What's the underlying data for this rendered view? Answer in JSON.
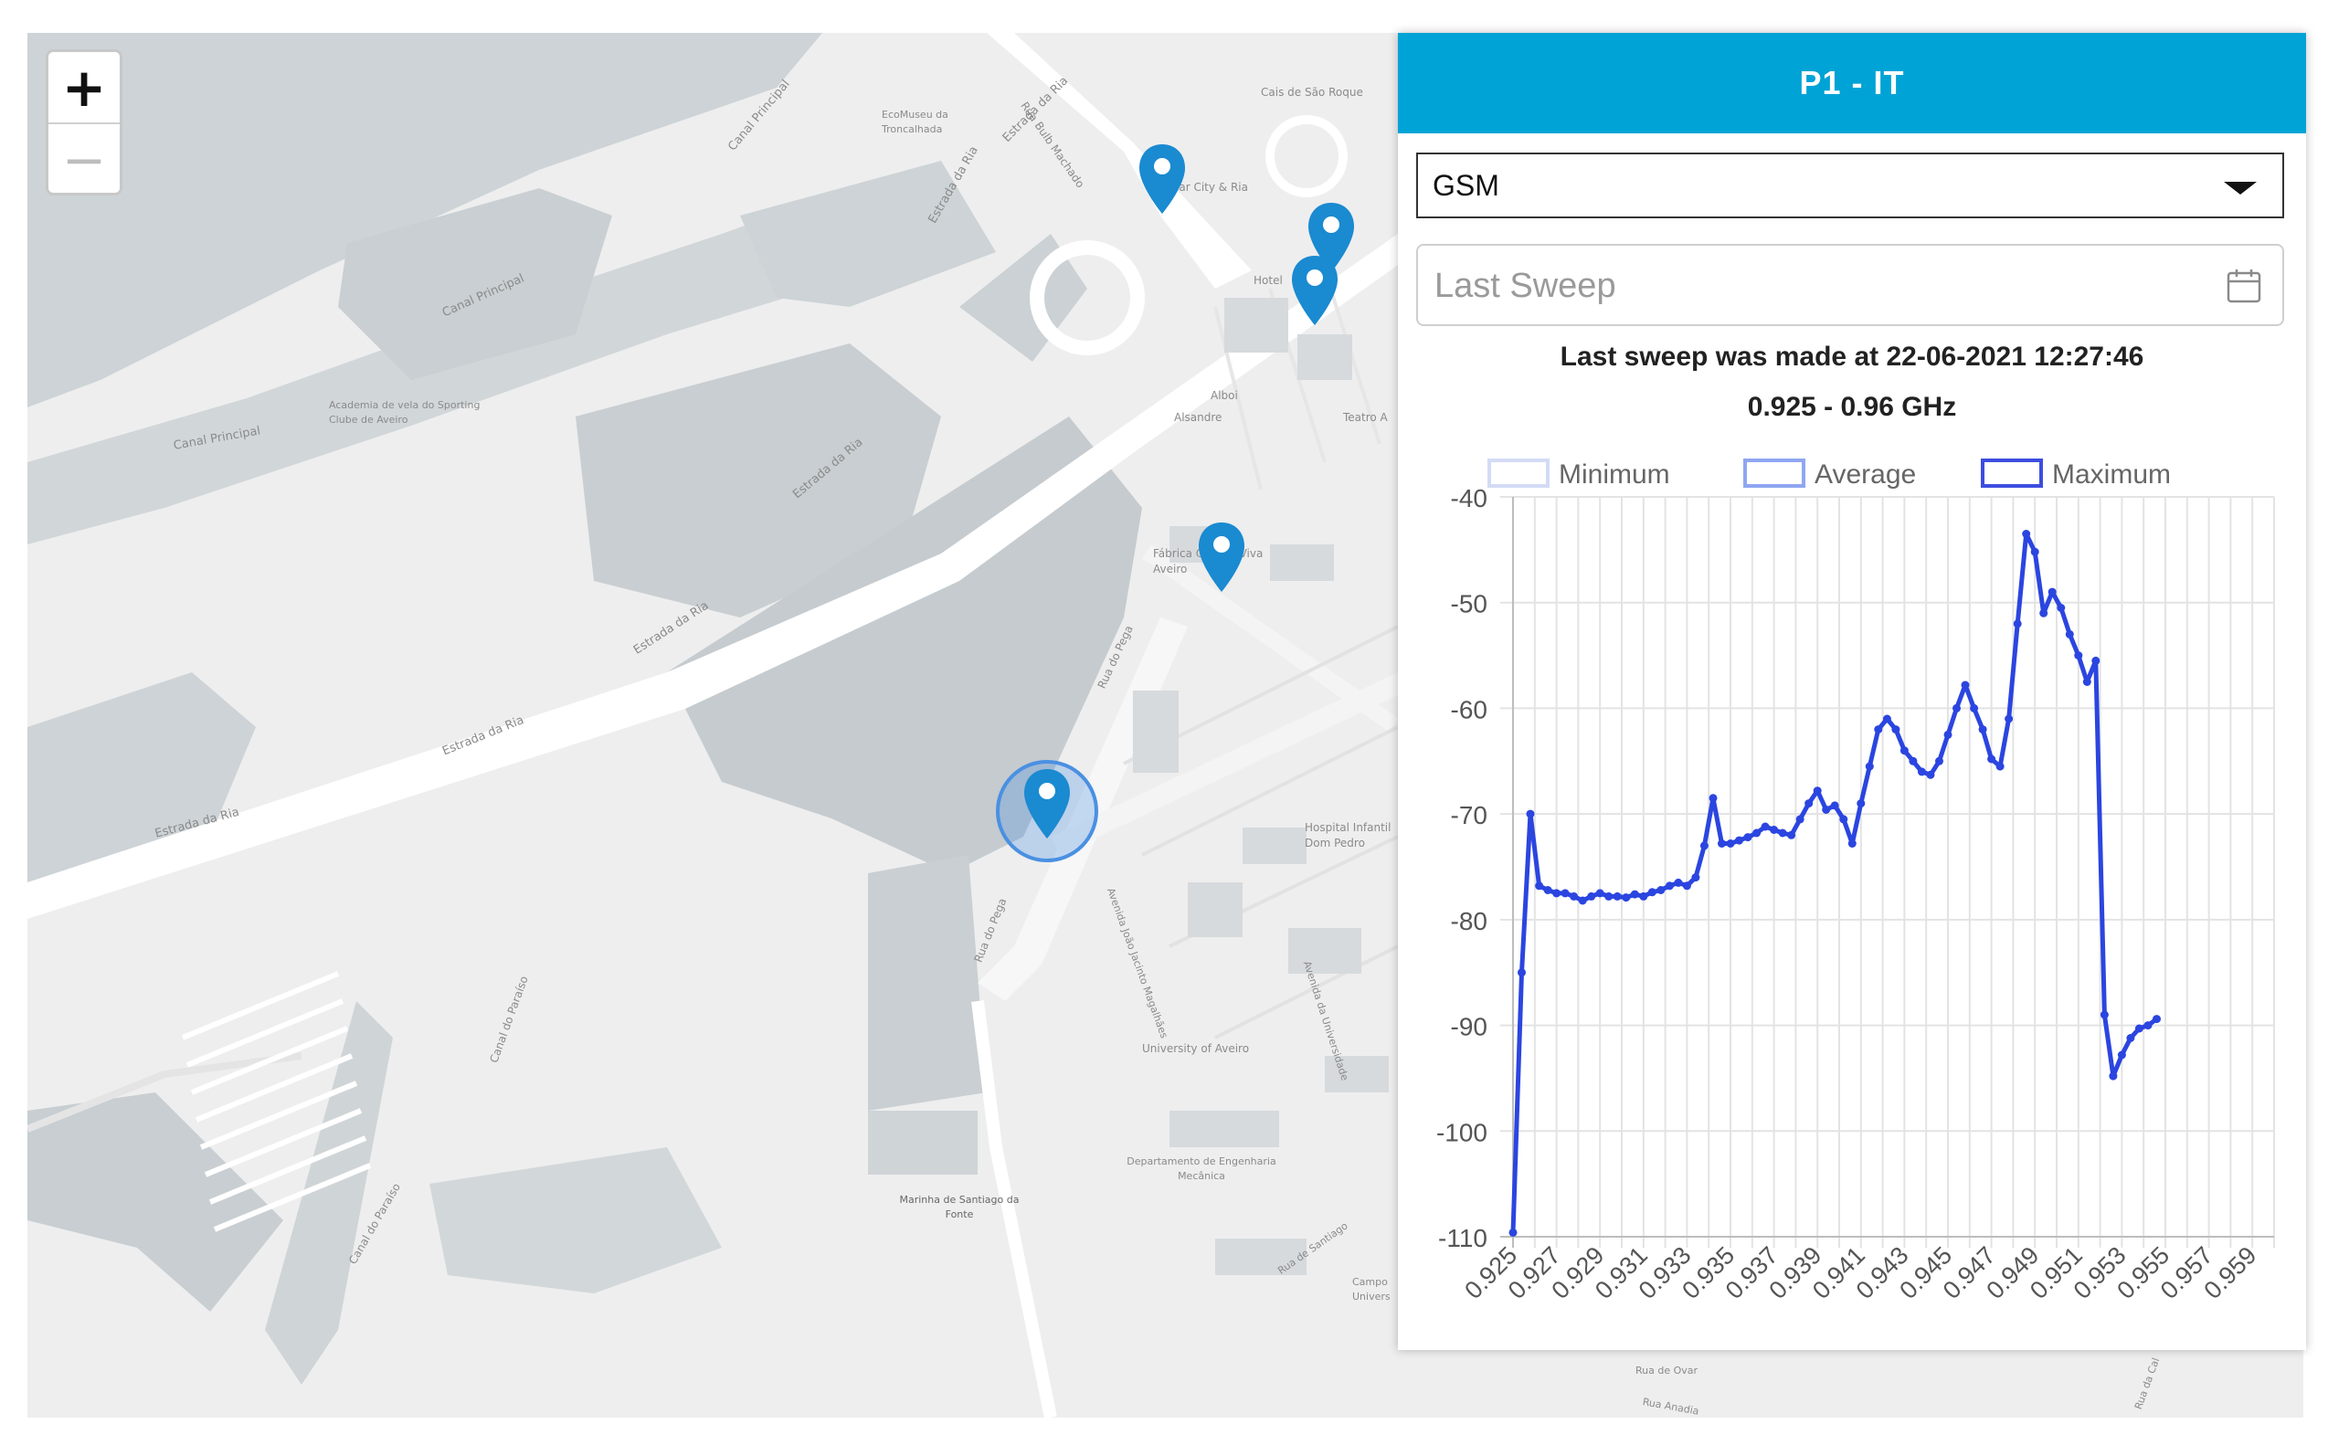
{
  "map": {
    "zoom_in_label": "+",
    "zoom_out_label": "−",
    "place_labels": [
      {
        "text": "Canal Principal"
      },
      {
        "text": "Canal Principal"
      },
      {
        "text": "Canal Principal"
      },
      {
        "text": "EcoMuseu da Troncalhada"
      },
      {
        "text": "Estrada da Ria"
      },
      {
        "text": "Estrada da Ria"
      },
      {
        "text": "Estrada da Ria"
      },
      {
        "text": "Estrada da Ria"
      },
      {
        "text": "Estrada da Ria"
      },
      {
        "text": "Estrada da Ria"
      },
      {
        "text": "Academia de vela do Sporting Clube de Aveiro"
      },
      {
        "text": "Rua Bulb Machado"
      },
      {
        "text": "Cais de São Roque"
      },
      {
        "text": "Mar City & Ria"
      },
      {
        "text": "Hotel"
      },
      {
        "text": "Alboi"
      },
      {
        "text": "Alsandre"
      },
      {
        "text": "Teatro A"
      },
      {
        "text": "Fábrica Ciência Viva Aveiro"
      },
      {
        "text": "Rua do Pega"
      },
      {
        "text": "Rua do Pega"
      },
      {
        "text": "Hospital Infantil Dom Pedro"
      },
      {
        "text": "Avenida João Jacinto Magalhães"
      },
      {
        "text": "Avenida da Universidade"
      },
      {
        "text": "University of Aveiro"
      },
      {
        "text": "Departamento de Engenharia Mecânica"
      },
      {
        "text": "Marinha de Santiago da Fonte"
      },
      {
        "text": "Rua de Santiago"
      },
      {
        "text": "Canal do Paraíso"
      },
      {
        "text": "Canal do Paraíso"
      },
      {
        "text": "Campo Univers"
      },
      {
        "text": "Rua de Ovar"
      },
      {
        "text": "Rua Anadia"
      },
      {
        "text": "Rua da Cal"
      }
    ]
  },
  "panel": {
    "title": "P1 - IT",
    "technology_select": {
      "value": "GSM"
    },
    "sweep_input": {
      "placeholder": "Last Sweep",
      "value": ""
    },
    "sweep_info": "Last sweep was made at 22-06-2021 12:27:46",
    "frequency_range": "0.925 - 0.96 GHz"
  },
  "colors": {
    "header": "#00a3d6",
    "marker": "#1a8ad1",
    "series_line": "#2b45e0",
    "legend_minimum": "#d3dbf5",
    "legend_average": "#8fa6f2",
    "legend_maximum": "#3d4de0"
  },
  "chart_data": {
    "type": "line",
    "title": "",
    "xlabel": "",
    "ylabel": "",
    "ylim": [
      -110,
      -40
    ],
    "yticks": [
      -40,
      -50,
      -60,
      -70,
      -80,
      -90,
      -100,
      -110
    ],
    "xlim": [
      0.925,
      0.96
    ],
    "xticks": [
      "0.925",
      "0.927",
      "0.929",
      "0.931",
      "0.933",
      "0.935",
      "0.937",
      "0.939",
      "0.941",
      "0.943",
      "0.945",
      "0.947",
      "0.949",
      "0.951",
      "0.953",
      "0.955",
      "0.957",
      "0.959"
    ],
    "grid": true,
    "legend": {
      "position": "top",
      "entries": [
        {
          "name": "Minimum",
          "color": "#d3dbf5"
        },
        {
          "name": "Average",
          "color": "#8fa6f2"
        },
        {
          "name": "Maximum",
          "color": "#3d4de0"
        }
      ]
    },
    "series": [
      {
        "name": "Maximum",
        "color": "#2b45e0",
        "points": [
          [
            0.925,
            -109.6
          ],
          [
            0.9254,
            -85
          ],
          [
            0.9258,
            -70
          ],
          [
            0.9262,
            -76.8
          ],
          [
            0.9266,
            -77.2
          ],
          [
            0.927,
            -77.5
          ],
          [
            0.9274,
            -77.5
          ],
          [
            0.9278,
            -77.8
          ],
          [
            0.9282,
            -78.2
          ],
          [
            0.9286,
            -77.8
          ],
          [
            0.929,
            -77.5
          ],
          [
            0.9294,
            -77.8
          ],
          [
            0.9298,
            -77.8
          ],
          [
            0.9302,
            -77.9
          ],
          [
            0.9306,
            -77.6
          ],
          [
            0.931,
            -77.8
          ],
          [
            0.9314,
            -77.4
          ],
          [
            0.9318,
            -77.2
          ],
          [
            0.9322,
            -76.8
          ],
          [
            0.9326,
            -76.5
          ],
          [
            0.933,
            -76.8
          ],
          [
            0.9334,
            -76
          ],
          [
            0.9338,
            -73
          ],
          [
            0.9342,
            -68.5
          ],
          [
            0.9346,
            -72.8
          ],
          [
            0.935,
            -72.8
          ],
          [
            0.9354,
            -72.5
          ],
          [
            0.9358,
            -72.2
          ],
          [
            0.9362,
            -71.8
          ],
          [
            0.9366,
            -71.2
          ],
          [
            0.937,
            -71.5
          ],
          [
            0.9374,
            -71.8
          ],
          [
            0.9378,
            -72
          ],
          [
            0.9382,
            -70.5
          ],
          [
            0.9386,
            -69
          ],
          [
            0.939,
            -67.8
          ],
          [
            0.9394,
            -69.6
          ],
          [
            0.9398,
            -69.2
          ],
          [
            0.9402,
            -70.5
          ],
          [
            0.9406,
            -72.8
          ],
          [
            0.941,
            -69
          ],
          [
            0.9414,
            -65.5
          ],
          [
            0.9418,
            -62
          ],
          [
            0.9422,
            -61
          ],
          [
            0.9426,
            -62
          ],
          [
            0.943,
            -64
          ],
          [
            0.9434,
            -65
          ],
          [
            0.9438,
            -66
          ],
          [
            0.9442,
            -66.3
          ],
          [
            0.9446,
            -65
          ],
          [
            0.945,
            -62.5
          ],
          [
            0.9454,
            -60
          ],
          [
            0.9458,
            -57.8
          ],
          [
            0.9462,
            -60
          ],
          [
            0.9466,
            -62
          ],
          [
            0.947,
            -64.8
          ],
          [
            0.9474,
            -65.5
          ],
          [
            0.9478,
            -61
          ],
          [
            0.9482,
            -52
          ],
          [
            0.9486,
            -43.5
          ],
          [
            0.949,
            -45.2
          ],
          [
            0.9494,
            -51
          ],
          [
            0.9498,
            -49
          ],
          [
            0.9502,
            -50.5
          ],
          [
            0.9506,
            -53
          ],
          [
            0.951,
            -55
          ],
          [
            0.9514,
            -57.5
          ],
          [
            0.9518,
            -55.5
          ],
          [
            0.9522,
            -89
          ],
          [
            0.9526,
            -94.8
          ],
          [
            0.953,
            -92.8
          ],
          [
            0.9534,
            -91.2
          ],
          [
            0.9538,
            -90.3
          ],
          [
            0.9542,
            -90
          ],
          [
            0.9546,
            -89.4
          ]
        ]
      }
    ]
  }
}
